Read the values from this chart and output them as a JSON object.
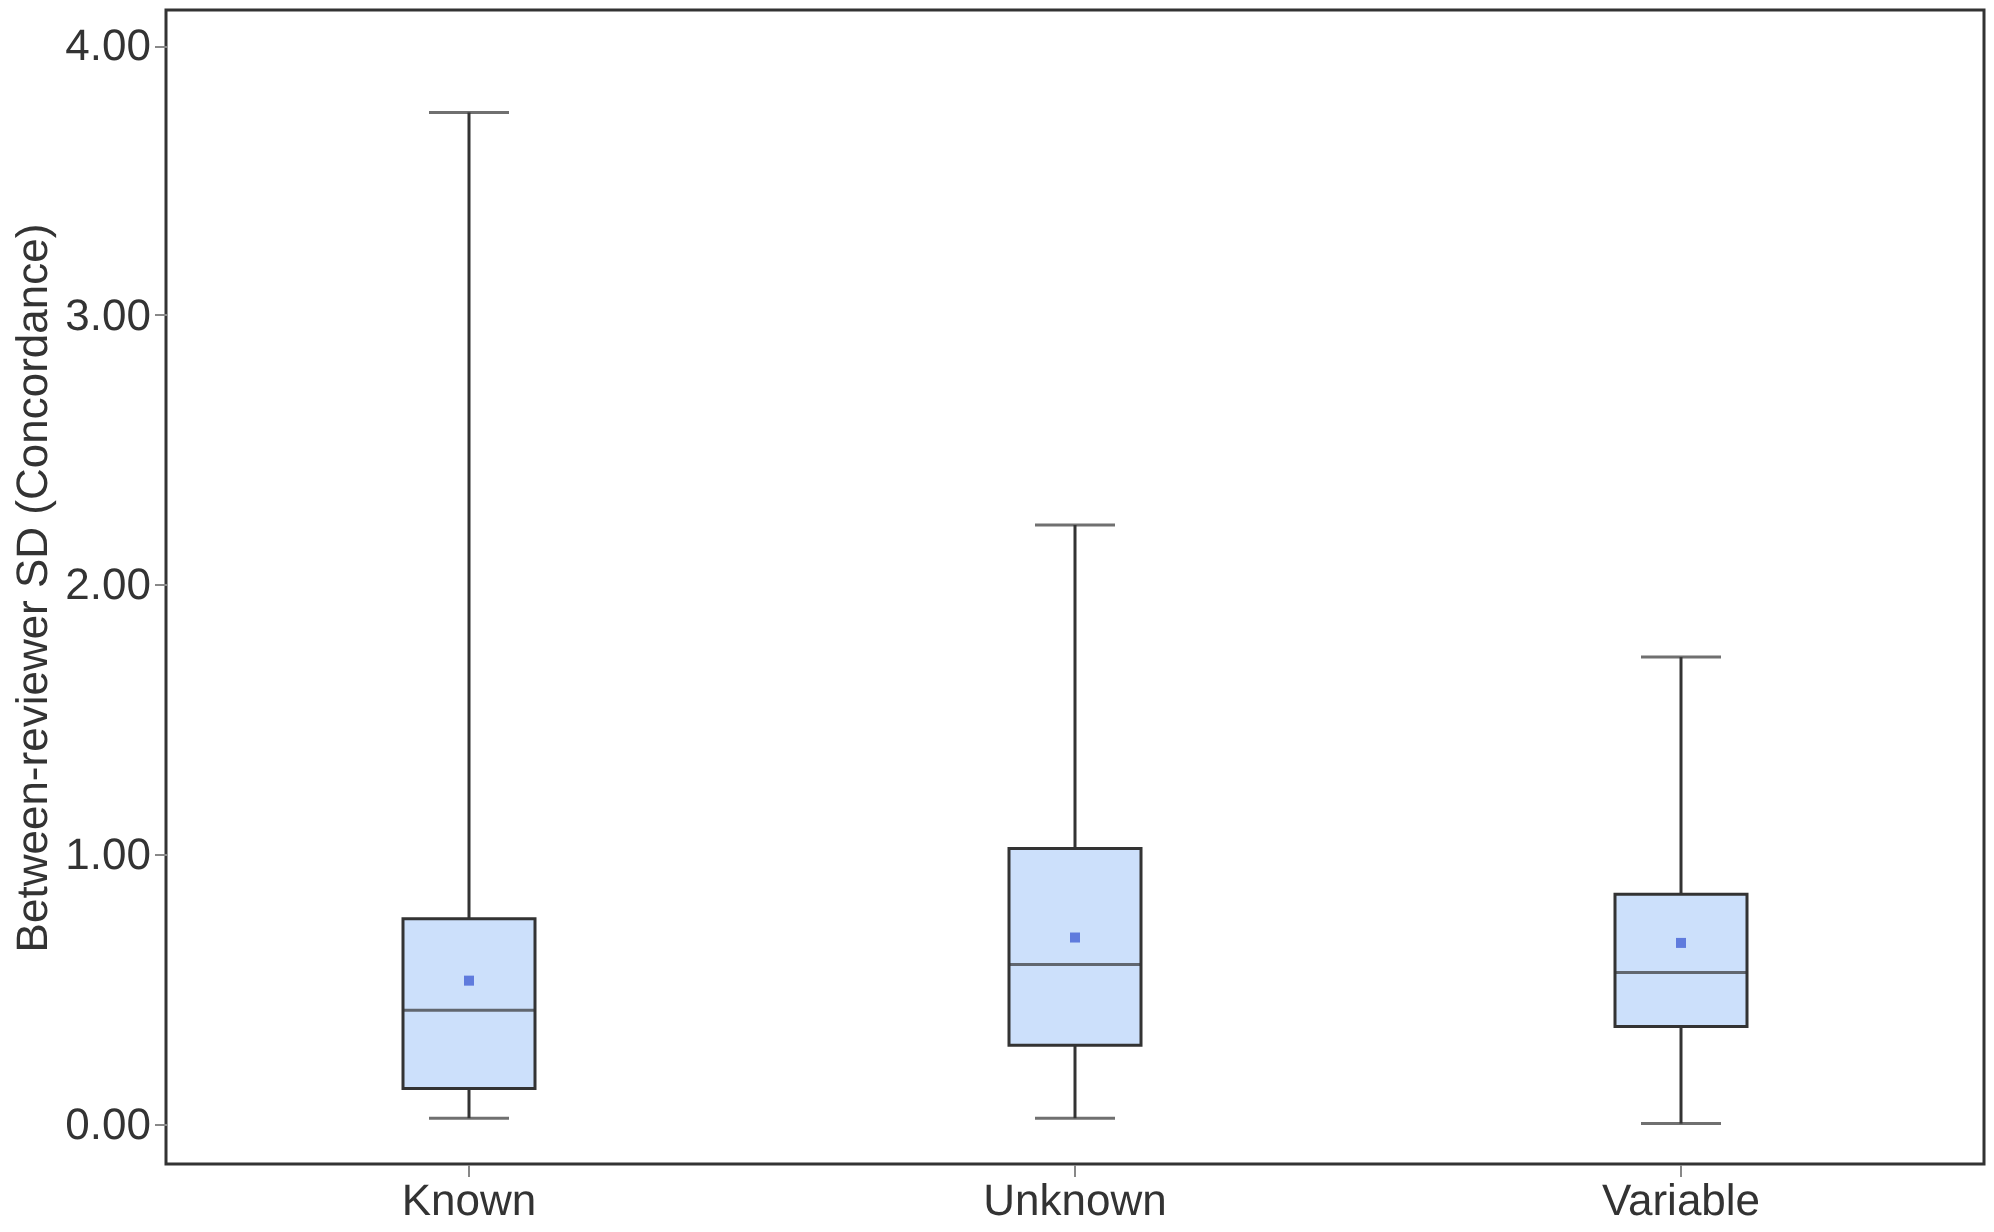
{
  "chart_data": {
    "type": "box",
    "ylabel": "Between-reviewer SD (Concordance)",
    "categories": [
      "Known",
      "Unknown",
      "Variable"
    ],
    "boxes": [
      {
        "low": 0.02,
        "q1": 0.13,
        "median": 0.42,
        "q3": 0.76,
        "high": 3.75,
        "mean": 0.53
      },
      {
        "low": 0.02,
        "q1": 0.29,
        "median": 0.59,
        "q3": 1.02,
        "high": 2.22,
        "mean": 0.69
      },
      {
        "low": 0.0,
        "q1": 0.36,
        "median": 0.56,
        "q3": 0.85,
        "high": 1.73,
        "mean": 0.67
      }
    ],
    "color": "#cce0fb",
    "ylim": [
      -0.15,
      4.13
    ],
    "yticks": [
      {
        "value": 0,
        "label": "0.00"
      },
      {
        "value": 1,
        "label": "1.00"
      },
      {
        "value": 2,
        "label": "2.00"
      },
      {
        "value": 3,
        "label": "3.00"
      },
      {
        "value": 4,
        "label": "4.00"
      }
    ],
    "grid": false
  }
}
